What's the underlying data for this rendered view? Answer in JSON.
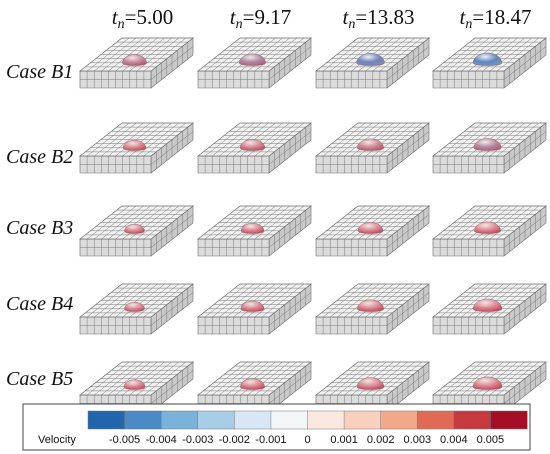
{
  "columns": [
    {
      "symbol": "t",
      "subscript": "n",
      "value": "=5.00"
    },
    {
      "symbol": "t",
      "subscript": "n",
      "value": "=9.17"
    },
    {
      "symbol": "t",
      "subscript": "n",
      "value": "=13.83"
    },
    {
      "symbol": "t",
      "subscript": "n",
      "value": "=18.47"
    }
  ],
  "rows": [
    {
      "label": "Case B1",
      "drop_scale": [
        0.78,
        0.86,
        0.92,
        0.95
      ],
      "blue_tint": [
        0.15,
        0.3,
        0.75,
        0.85
      ]
    },
    {
      "label": "Case B2",
      "drop_scale": [
        0.72,
        0.8,
        0.86,
        0.9
      ],
      "blue_tint": [
        0.0,
        0.05,
        0.1,
        0.25
      ]
    },
    {
      "label": "Case B3",
      "drop_scale": [
        0.62,
        0.72,
        0.8,
        0.86
      ],
      "blue_tint": [
        0,
        0,
        0,
        0
      ]
    },
    {
      "label": "Case B4",
      "drop_scale": [
        0.62,
        0.74,
        0.86,
        0.95
      ],
      "blue_tint": [
        0,
        0,
        0,
        0
      ]
    },
    {
      "label": "Case B5",
      "drop_scale": [
        0.66,
        0.78,
        0.88,
        0.96
      ],
      "blue_tint": [
        0,
        0,
        0,
        0
      ]
    }
  ],
  "colorbar": {
    "label": "Velocity",
    "ticks": [
      "-0.005",
      "-0.004",
      "-0.003",
      "-0.002",
      "-0.001",
      "0",
      "0.001",
      "0.002",
      "0.003",
      "0.004",
      "0.005"
    ],
    "colors": [
      "#2166ac",
      "#4a8ac7",
      "#7ab2d9",
      "#a8cde6",
      "#d7e8f4",
      "#f4f7fa",
      "#fbe9e1",
      "#f8d0bc",
      "#f2a88a",
      "#e06a56",
      "#c63a3f",
      "#a50f25"
    ]
  },
  "colors": {
    "box_top": "#f2f2f2",
    "box_side": "#c9c9c9",
    "box_front": "#dcdcdc",
    "grid": "#6d6d6d",
    "drop_red": "#c8465c",
    "drop_light": "#f3e6e4",
    "drop_blue": "#4a86c8"
  }
}
